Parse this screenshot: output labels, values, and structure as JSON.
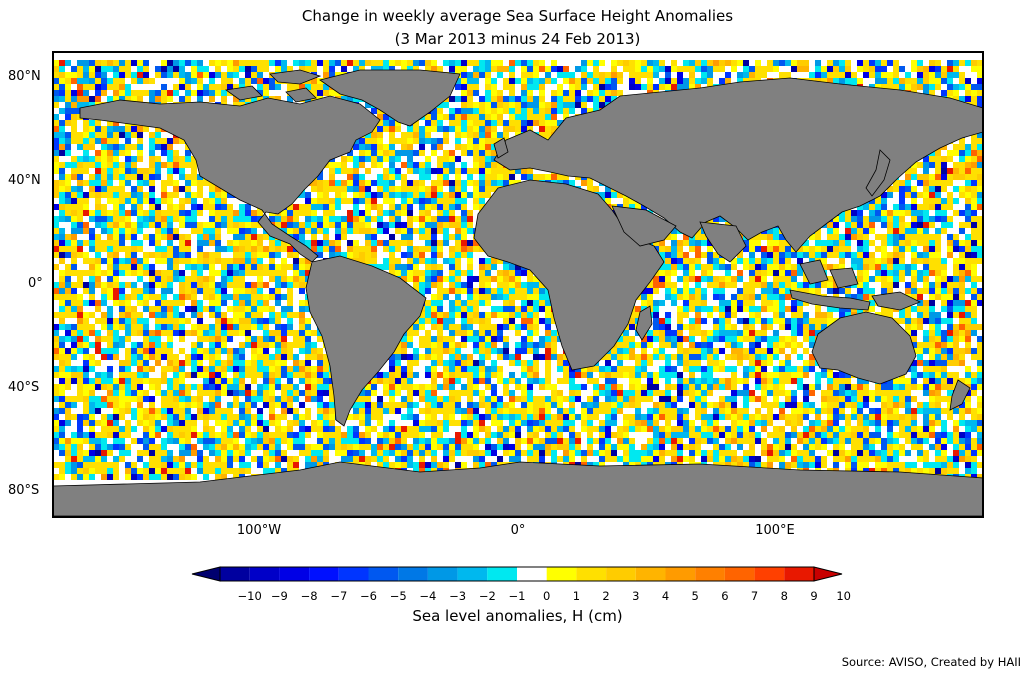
{
  "title_line1": "Change in weekly average Sea Surface Height Anomalies",
  "title_line2": "(3 Mar 2013 minus 24 Feb 2013)",
  "lat_labels": [
    "80°N",
    "40°N",
    "0°",
    "40°S",
    "80°S"
  ],
  "lon_labels": [
    "100°W",
    "0°",
    "100°E"
  ],
  "colorbar": {
    "title": "Sea level anomalies, H (cm)",
    "ticks": [
      "−10",
      "−9",
      "−8",
      "−7",
      "−6",
      "−5",
      "−4",
      "−3",
      "−2",
      "−1",
      "0",
      "1",
      "2",
      "3",
      "4",
      "5",
      "6",
      "7",
      "8",
      "9",
      "10"
    ],
    "colors": [
      "#00006f",
      "#00009f",
      "#0000c8",
      "#0000e6",
      "#0010ff",
      "#0035ff",
      "#0058f0",
      "#0078e6",
      "#0098e6",
      "#00b8ee",
      "#00e8f0",
      "#ffffff",
      "#ffff00",
      "#ffe000",
      "#ffcc00",
      "#ffb400",
      "#ff9b00",
      "#ff8000",
      "#ff6400",
      "#ff4000",
      "#e81800",
      "#c80000"
    ]
  },
  "source": "Source: AVISO, Created by HAII",
  "colors": {
    "land": "#808080",
    "frame": "#000000"
  }
}
